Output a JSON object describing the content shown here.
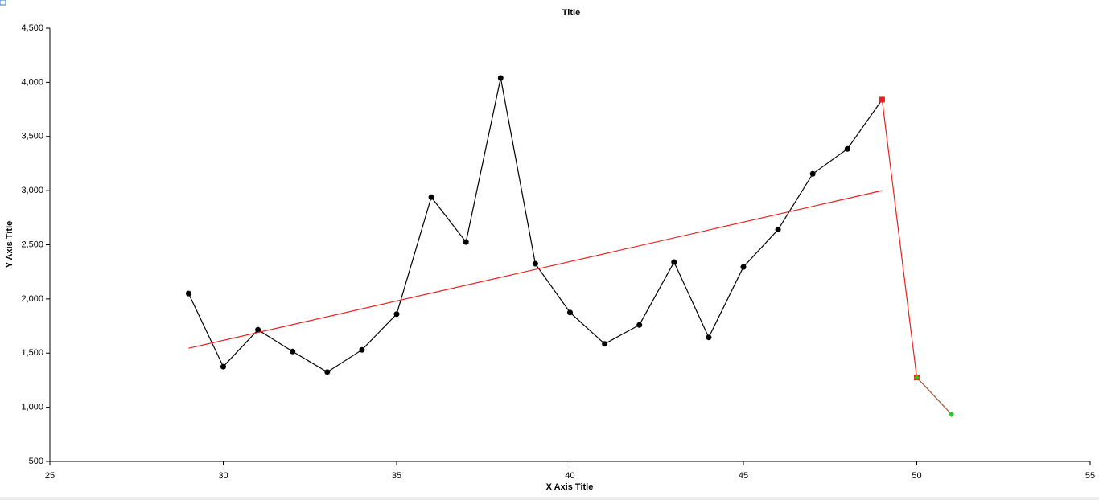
{
  "chart_data": {
    "type": "line",
    "title": "Title",
    "x_label": "X Axis Title",
    "y_label": "Y Axis Title",
    "xlim": [
      25,
      55
    ],
    "xticks": [
      25,
      30,
      35,
      40,
      45,
      50,
      55
    ],
    "ylim": [
      500,
      4500
    ],
    "yticks": [
      500,
      {
        "value": 1000,
        "label": "1,000"
      },
      {
        "value": 1500,
        "label": "1,500"
      },
      {
        "value": 2000,
        "label": "2,000"
      },
      {
        "value": 2500,
        "label": "2,500"
      },
      {
        "value": 3000,
        "label": "3,000"
      },
      {
        "value": 3500,
        "label": "3,500"
      },
      {
        "value": 4000,
        "label": "4,000"
      },
      {
        "value": 4500,
        "label": "4,500"
      }
    ],
    "grid": false,
    "series": [
      {
        "color": "#000000",
        "marker": "circle",
        "marker_color": "#000000",
        "x": [
          29,
          30,
          31,
          32,
          33,
          34,
          35,
          36,
          37,
          38,
          39,
          40,
          41,
          42,
          43,
          44,
          45,
          46,
          47,
          48,
          49
        ],
        "values": [
          2050,
          1375,
          1715,
          1515,
          1325,
          1530,
          1860,
          2940,
          2525,
          4040,
          2325,
          1875,
          1585,
          1760,
          2340,
          1645,
          2295,
          2640,
          3155,
          3385,
          3840
        ]
      },
      {
        "color": "#e8201e",
        "marker": "none",
        "marker_color": "#e8201e",
        "x": [
          29,
          49
        ],
        "values": [
          1545,
          3000
        ]
      },
      {
        "color": "#e8201e",
        "marker": "square",
        "marker_color": "#e8201e",
        "x": [
          49,
          50
        ],
        "values": [
          3840,
          1275
        ]
      },
      {
        "color": "#a0522d",
        "marker": "diamond",
        "marker_color": "#22cc22",
        "x": [
          50,
          51
        ],
        "values": [
          1275,
          935
        ]
      }
    ]
  }
}
